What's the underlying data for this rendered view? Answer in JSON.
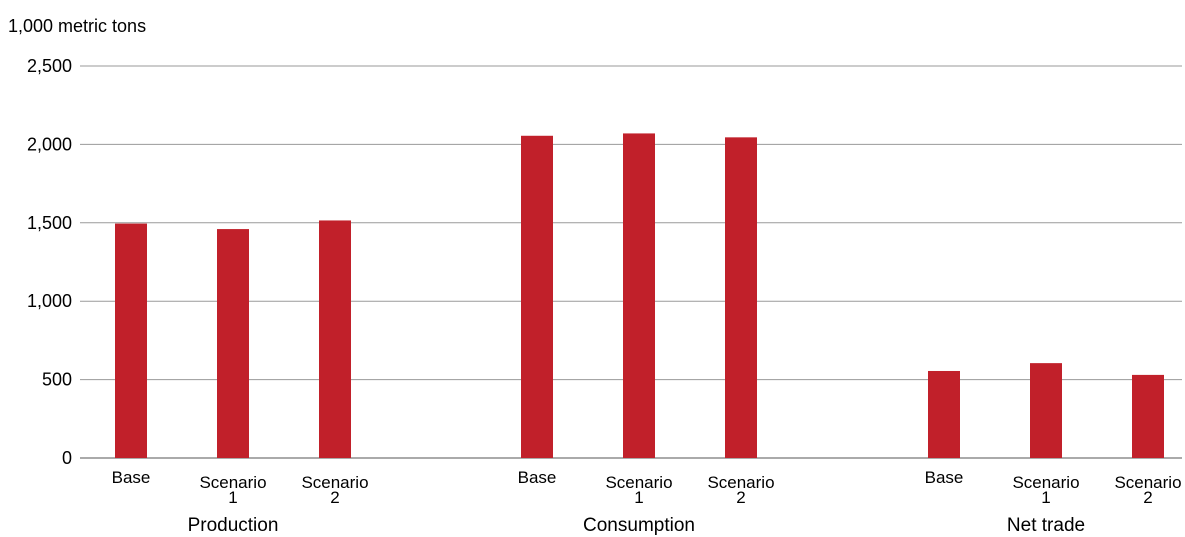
{
  "chart_data": {
    "type": "bar",
    "ylabel": "1,000 metric tons",
    "ylim": [
      0,
      2500
    ],
    "yticks": [
      "0",
      "500",
      "1,000",
      "1,500",
      "2,000",
      "2,500"
    ],
    "ytick_values": [
      0,
      500,
      1000,
      1500,
      2000,
      2500
    ],
    "grid": true,
    "bar_color": "#C1202A",
    "groups": [
      {
        "name": "Production",
        "categories": [
          [
            "Base"
          ],
          [
            "Scenario",
            "1"
          ],
          [
            "Scenario",
            "2"
          ]
        ],
        "values": [
          1495,
          1460,
          1515
        ]
      },
      {
        "name": "Consumption",
        "categories": [
          [
            "Base"
          ],
          [
            "Scenario",
            "1"
          ],
          [
            "Scenario",
            "2"
          ]
        ],
        "values": [
          2055,
          2070,
          2045
        ]
      },
      {
        "name": "Net trade",
        "categories": [
          [
            "Base"
          ],
          [
            "Scenario",
            "1"
          ],
          [
            "Scenario",
            "2"
          ]
        ],
        "values": [
          555,
          605,
          530
        ]
      }
    ]
  }
}
